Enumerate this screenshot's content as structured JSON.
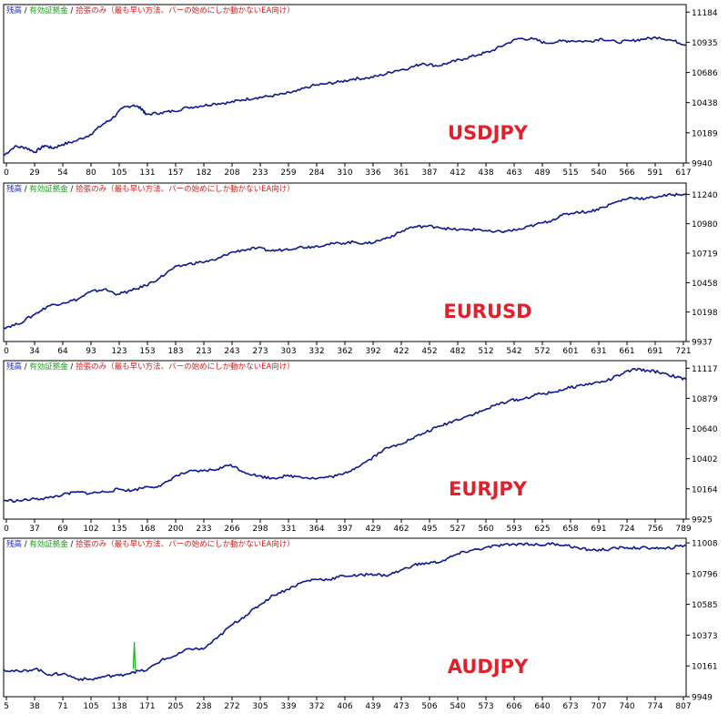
{
  "legend": [
    {
      "text": "残高",
      "color": "#1f2ec8"
    },
    {
      "text": "有効証拠金",
      "color": "#18a018"
    },
    {
      "text": "拾張のみ（最も早い方法、バーの始めにしか動かないEA向け）",
      "color": "#e01818"
    }
  ],
  "legend_separator": " / ",
  "colors": {
    "balance": "#0a1a8c",
    "equity": "#18b418",
    "axis": "#000000",
    "frame": "#000000",
    "pair_label": "#e0202a"
  },
  "chart_data": [
    {
      "type": "line",
      "label": "USDJPY",
      "x_ticks": [
        "0",
        "29",
        "54",
        "80",
        "105",
        "131",
        "157",
        "182",
        "208",
        "233",
        "259",
        "284",
        "310",
        "336",
        "361",
        "387",
        "412",
        "438",
        "463",
        "489",
        "515",
        "540",
        "566",
        "591",
        "617"
      ],
      "y_ticks": [
        "11184",
        "10935",
        "10686",
        "10438",
        "10189",
        "9940"
      ],
      "ylim": [
        9940,
        11246
      ],
      "xlim": [
        0,
        630
      ],
      "series": [
        {
          "values": [
            [
              0,
              10002
            ],
            [
              10,
              10075
            ],
            [
              20,
              10068
            ],
            [
              29,
              10030
            ],
            [
              38,
              10085
            ],
            [
              45,
              10062
            ],
            [
              54,
              10092
            ],
            [
              66,
              10120
            ],
            [
              80,
              10175
            ],
            [
              92,
              10262
            ],
            [
              100,
              10305
            ],
            [
              110,
              10393
            ],
            [
              120,
              10418
            ],
            [
              128,
              10385
            ],
            [
              131,
              10340
            ],
            [
              145,
              10354
            ],
            [
              157,
              10368
            ],
            [
              170,
              10398
            ],
            [
              182,
              10410
            ],
            [
              195,
              10430
            ],
            [
              208,
              10438
            ],
            [
              220,
              10460
            ],
            [
              233,
              10478
            ],
            [
              245,
              10490
            ],
            [
              259,
              10510
            ],
            [
              270,
              10530
            ],
            [
              284,
              10575
            ],
            [
              297,
              10592
            ],
            [
              310,
              10608
            ],
            [
              323,
              10634
            ],
            [
              336,
              10640
            ],
            [
              349,
              10664
            ],
            [
              361,
              10700
            ],
            [
              375,
              10724
            ],
            [
              387,
              10763
            ],
            [
              400,
              10740
            ],
            [
              412,
              10768
            ],
            [
              425,
              10800
            ],
            [
              438,
              10832
            ],
            [
              450,
              10862
            ],
            [
              463,
              10918
            ],
            [
              475,
              10966
            ],
            [
              489,
              10962
            ],
            [
              500,
              10928
            ],
            [
              515,
              10945
            ],
            [
              525,
              10948
            ],
            [
              540,
              10942
            ],
            [
              552,
              10965
            ],
            [
              566,
              10935
            ],
            [
              580,
              10948
            ],
            [
              591,
              10962
            ],
            [
              605,
              10976
            ],
            [
              617,
              10950
            ],
            [
              630,
              10915
            ]
          ]
        }
      ]
    },
    {
      "type": "line",
      "label": "EURUSD",
      "x_ticks": [
        "0",
        "34",
        "64",
        "93",
        "123",
        "153",
        "183",
        "213",
        "243",
        "273",
        "303",
        "332",
        "362",
        "392",
        "422",
        "452",
        "482",
        "512",
        "542",
        "572",
        "601",
        "631",
        "661",
        "691",
        "721"
      ],
      "y_ticks": [
        "11240",
        "10980",
        "10719",
        "10458",
        "10198",
        "9937"
      ],
      "ylim": [
        9937,
        11340
      ],
      "xlim": [
        0,
        735
      ],
      "series": [
        {
          "values": [
            [
              0,
              10060
            ],
            [
              15,
              10090
            ],
            [
              34,
              10180
            ],
            [
              48,
              10252
            ],
            [
              64,
              10280
            ],
            [
              80,
              10312
            ],
            [
              93,
              10375
            ],
            [
              108,
              10400
            ],
            [
              123,
              10356
            ],
            [
              138,
              10388
            ],
            [
              153,
              10433
            ],
            [
              168,
              10499
            ],
            [
              183,
              10588
            ],
            [
              198,
              10622
            ],
            [
              213,
              10640
            ],
            [
              228,
              10658
            ],
            [
              243,
              10720
            ],
            [
              258,
              10748
            ],
            [
              273,
              10764
            ],
            [
              288,
              10740
            ],
            [
              303,
              10752
            ],
            [
              318,
              10772
            ],
            [
              332,
              10776
            ],
            [
              347,
              10794
            ],
            [
              362,
              10808
            ],
            [
              377,
              10818
            ],
            [
              392,
              10804
            ],
            [
              407,
              10838
            ],
            [
              422,
              10884
            ],
            [
              437,
              10945
            ],
            [
              452,
              10958
            ],
            [
              467,
              10953
            ],
            [
              482,
              10930
            ],
            [
              497,
              10925
            ],
            [
              512,
              10930
            ],
            [
              527,
              10905
            ],
            [
              542,
              10915
            ],
            [
              557,
              10931
            ],
            [
              572,
              10970
            ],
            [
              587,
              11000
            ],
            [
              601,
              11053
            ],
            [
              616,
              11082
            ],
            [
              631,
              11087
            ],
            [
              646,
              11127
            ],
            [
              661,
              11176
            ],
            [
              676,
              11212
            ],
            [
              691,
              11201
            ],
            [
              706,
              11223
            ],
            [
              721,
              11236
            ],
            [
              735,
              11246
            ]
          ]
        }
      ]
    },
    {
      "type": "line",
      "label": "EURJPY",
      "x_ticks": [
        "0",
        "37",
        "69",
        "102",
        "135",
        "168",
        "200",
        "233",
        "266",
        "298",
        "331",
        "364",
        "397",
        "429",
        "462",
        "495",
        "527",
        "560",
        "593",
        "625",
        "658",
        "691",
        "724",
        "756",
        "789"
      ],
      "y_ticks": [
        "11117",
        "10879",
        "10640",
        "10402",
        "10164",
        "9925"
      ],
      "ylim": [
        9925,
        11177
      ],
      "xlim": [
        0,
        800
      ],
      "series": [
        {
          "values": [
            [
              0,
              10072
            ],
            [
              18,
              10070
            ],
            [
              37,
              10084
            ],
            [
              52,
              10092
            ],
            [
              69,
              10117
            ],
            [
              85,
              10138
            ],
            [
              102,
              10130
            ],
            [
              118,
              10140
            ],
            [
              135,
              10161
            ],
            [
              150,
              10150
            ],
            [
              168,
              10182
            ],
            [
              184,
              10184
            ],
            [
              200,
              10260
            ],
            [
              216,
              10298
            ],
            [
              233,
              10305
            ],
            [
              250,
              10318
            ],
            [
              266,
              10356
            ],
            [
              282,
              10296
            ],
            [
              298,
              10266
            ],
            [
              314,
              10248
            ],
            [
              331,
              10265
            ],
            [
              347,
              10262
            ],
            [
              364,
              10246
            ],
            [
              380,
              10256
            ],
            [
              397,
              10277
            ],
            [
              413,
              10333
            ],
            [
              429,
              10396
            ],
            [
              445,
              10472
            ],
            [
              462,
              10514
            ],
            [
              478,
              10558
            ],
            [
              495,
              10612
            ],
            [
              511,
              10658
            ],
            [
              527,
              10700
            ],
            [
              543,
              10738
            ],
            [
              560,
              10776
            ],
            [
              576,
              10824
            ],
            [
              593,
              10862
            ],
            [
              609,
              10873
            ],
            [
              625,
              10910
            ],
            [
              641,
              10922
            ],
            [
              658,
              10954
            ],
            [
              674,
              10979
            ],
            [
              691,
              10998
            ],
            [
              707,
              11017
            ],
            [
              724,
              11070
            ],
            [
              740,
              11110
            ],
            [
              756,
              11098
            ],
            [
              772,
              11081
            ],
            [
              789,
              11046
            ],
            [
              800,
              11026
            ]
          ]
        }
      ]
    },
    {
      "type": "line",
      "label": "AUDJPY",
      "x_ticks": [
        "5",
        "38",
        "71",
        "105",
        "138",
        "171",
        "205",
        "238",
        "272",
        "305",
        "339",
        "372",
        "406",
        "439",
        "473",
        "506",
        "540",
        "573",
        "606",
        "640",
        "673",
        "707",
        "740",
        "774",
        "807"
      ],
      "y_ticks": [
        "11008",
        "10796",
        "10585",
        "10373",
        "10161",
        "9949"
      ],
      "ylim": [
        9949,
        11040
      ],
      "xlim": [
        0,
        815
      ],
      "series": [
        {
          "values": [
            [
              0,
              10135
            ],
            [
              20,
              10120
            ],
            [
              38,
              10142
            ],
            [
              55,
              10100
            ],
            [
              71,
              10108
            ],
            [
              88,
              10072
            ],
            [
              105,
              10068
            ],
            [
              122,
              10090
            ],
            [
              138,
              10095
            ],
            [
              155,
              10120
            ],
            [
              171,
              10131
            ],
            [
              188,
              10200
            ],
            [
              205,
              10230
            ],
            [
              222,
              10280
            ],
            [
              238,
              10276
            ],
            [
              255,
              10352
            ],
            [
              272,
              10442
            ],
            [
              289,
              10508
            ],
            [
              305,
              10577
            ],
            [
              322,
              10648
            ],
            [
              339,
              10688
            ],
            [
              356,
              10736
            ],
            [
              372,
              10758
            ],
            [
              389,
              10756
            ],
            [
              406,
              10782
            ],
            [
              423,
              10782
            ],
            [
              439,
              10795
            ],
            [
              456,
              10782
            ],
            [
              473,
              10815
            ],
            [
              490,
              10856
            ],
            [
              506,
              10868
            ],
            [
              523,
              10880
            ],
            [
              540,
              10926
            ],
            [
              557,
              10956
            ],
            [
              573,
              10970
            ],
            [
              590,
              10990
            ],
            [
              606,
              10996
            ],
            [
              623,
              11003
            ],
            [
              640,
              10992
            ],
            [
              657,
              11003
            ],
            [
              673,
              10990
            ],
            [
              690,
              10966
            ],
            [
              707,
              10958
            ],
            [
              724,
              10965
            ],
            [
              740,
              10977
            ],
            [
              757,
              10972
            ],
            [
              774,
              10974
            ],
            [
              790,
              10966
            ],
            [
              807,
              10986
            ],
            [
              815,
              10992
            ]
          ]
        }
      ],
      "equity_spike": {
        "x": 156,
        "values": [
          10140,
          10325,
          10130
        ]
      }
    }
  ]
}
